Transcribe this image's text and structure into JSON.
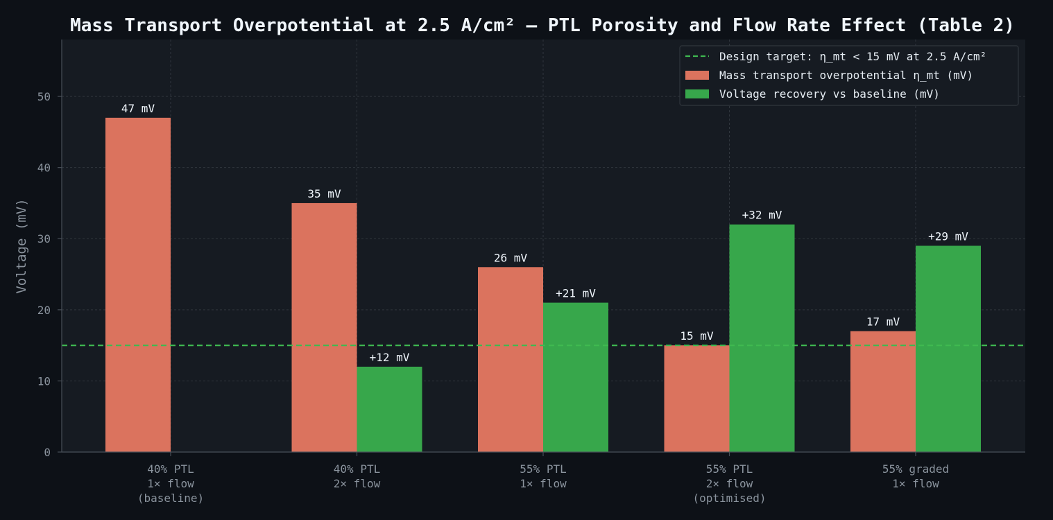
{
  "chart_data": {
    "type": "bar",
    "title": "Mass Transport Overpotential at 2.5 A/cm² — PTL Porosity and Flow Rate Effect (Table 2)",
    "ylabel": "Voltage (mV)",
    "xlabel": "",
    "ylim": [
      0,
      58
    ],
    "yticks": [
      0,
      10,
      20,
      30,
      40,
      50
    ],
    "grid": true,
    "legend_position": "top-right",
    "categories": [
      [
        "40% PTL",
        "1× flow",
        "(baseline)"
      ],
      [
        "40% PTL",
        "2× flow"
      ],
      [
        "55% PTL",
        "1× flow"
      ],
      [
        "55% PTL",
        "2× flow",
        "(optimised)"
      ],
      [
        "55% graded",
        "1× flow"
      ]
    ],
    "series": [
      {
        "name": "Mass transport overpotential η_mt (mV)",
        "values": [
          47,
          35,
          26,
          15,
          17
        ],
        "labels": [
          "47 mV",
          "35 mV",
          "26 mV",
          "15 mV",
          "17 mV"
        ],
        "color": "#db735e"
      },
      {
        "name": "Voltage recovery vs baseline (mV)",
        "values": [
          null,
          12,
          21,
          32,
          29
        ],
        "labels": [
          "",
          "+12 mV",
          "+21 mV",
          "+32 mV",
          "+29 mV"
        ],
        "color": "#37a74b"
      }
    ],
    "reference_line": {
      "name": "Design target: η_mt < 15 mV at 2.5 A/cm²",
      "value": 15,
      "color": "#3fb950",
      "style": "dashed"
    }
  },
  "colors": {
    "background": "#0d1117",
    "plot_background": "#161b22",
    "grid": "#30363d",
    "axis": "#484f58",
    "text": "#8b949e"
  }
}
